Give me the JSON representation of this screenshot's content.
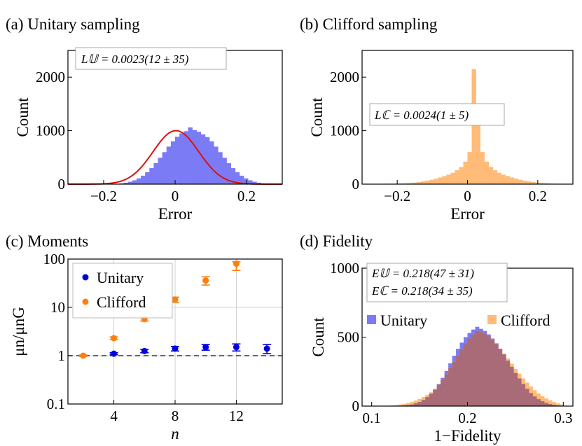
{
  "colors": {
    "unitary": "#0000dd",
    "unitary_hist": "#7b7bf5",
    "clifford": "#ff7f0e",
    "clifford_hist": "#ffbb77",
    "fit_curve": "#dd1111",
    "overlap": "#a86b77"
  },
  "chart_data": [
    {
      "id": "a",
      "type": "histogram",
      "title": "(a) Unitary sampling",
      "xlabel": "Error",
      "ylabel": "Count",
      "xlim": [
        -0.3,
        0.3
      ],
      "ylim": [
        0,
        2500
      ],
      "xticks": [
        {
          "v": -0.2,
          "label": "−0.2"
        },
        {
          "v": 0,
          "label": "0"
        },
        {
          "v": 0.2,
          "label": "0.2"
        }
      ],
      "yticks": [
        {
          "v": 0,
          "label": "0"
        },
        {
          "v": 1000,
          "label": "1000"
        },
        {
          "v": 2000,
          "label": "2000"
        }
      ],
      "annotation": "L𝕌 = 0.0023(12 ± 35)",
      "bin_width": 0.012,
      "bin_start": -0.18,
      "counts": [
        4,
        8,
        15,
        27,
        45,
        72,
        108,
        158,
        222,
        300,
        392,
        492,
        598,
        702,
        800,
        885,
        950,
        990,
        1060,
        1010,
        980,
        930,
        880,
        800,
        702,
        598,
        492,
        392,
        300,
        222,
        158,
        108,
        72,
        45,
        27,
        15,
        8
      ],
      "fit": {
        "type": "gaussian",
        "amplitude": 1000,
        "mean": 0.0023,
        "sigma": 0.064
      }
    },
    {
      "id": "b",
      "type": "histogram",
      "title": "(b) Clifford sampling",
      "xlabel": "Error",
      "ylabel": "Count",
      "xlim": [
        -0.3,
        0.3
      ],
      "ylim": [
        0,
        2500
      ],
      "xticks": [
        {
          "v": -0.2,
          "label": "−0.2"
        },
        {
          "v": 0,
          "label": "0"
        },
        {
          "v": 0.2,
          "label": "0.2"
        }
      ],
      "yticks": [
        {
          "v": 0,
          "label": "0"
        },
        {
          "v": 1000,
          "label": "1000"
        },
        {
          "v": 2000,
          "label": "2000"
        }
      ],
      "annotation": "Lℂ = 0.0024(1 ± 5)",
      "bin_width": 0.012,
      "bin_start": -0.276,
      "counts": [
        2,
        3,
        4,
        5,
        6,
        8,
        10,
        13,
        17,
        22,
        30,
        40,
        52,
        66,
        82,
        102,
        125,
        150,
        178,
        212,
        260,
        320,
        420,
        600,
        2150,
        1400,
        600,
        420,
        320,
        260,
        212,
        178,
        150,
        125,
        102,
        82,
        66,
        52,
        40,
        30,
        22,
        17,
        13,
        10,
        8,
        6
      ]
    },
    {
      "id": "c",
      "type": "scatter",
      "title": "(c) Moments",
      "xlabel": "n",
      "ylabel": "μn/μnG",
      "yscale": "log",
      "xlim": [
        1,
        15
      ],
      "ylim": [
        0.1,
        100
      ],
      "grid": true,
      "legend": "top-left",
      "xticks": [
        {
          "v": 4,
          "label": "4"
        },
        {
          "v": 8,
          "label": "8"
        },
        {
          "v": 12,
          "label": "12"
        }
      ],
      "yticks": [
        {
          "v": 0.1,
          "label": "0.1"
        },
        {
          "v": 1,
          "label": "1"
        },
        {
          "v": 10,
          "label": "10"
        },
        {
          "v": 100,
          "label": "100"
        }
      ],
      "reference_line": 1,
      "series": [
        {
          "name": "Unitary",
          "x": [
            4,
            6,
            8,
            10,
            12,
            14
          ],
          "y": [
            1.1,
            1.25,
            1.4,
            1.5,
            1.5,
            1.4
          ],
          "err_low": [
            0.05,
            0.1,
            0.15,
            0.2,
            0.25,
            0.3
          ],
          "err_high": [
            0.05,
            0.1,
            0.15,
            0.2,
            0.25,
            0.3
          ]
        },
        {
          "name": "Clifford",
          "x": [
            2,
            4,
            6,
            8,
            10,
            12
          ],
          "y": [
            1.0,
            2.3,
            5.7,
            14.5,
            36,
            80
          ],
          "err_low": [
            0.03,
            0.15,
            0.5,
            1.8,
            7,
            22
          ],
          "err_high": [
            0.03,
            0.15,
            0.5,
            1.8,
            7,
            8
          ]
        }
      ]
    },
    {
      "id": "d",
      "type": "histogram",
      "title": "(d) Fidelity",
      "xlabel": "1−Fidelity",
      "ylabel": "Count",
      "xlim": [
        0.09,
        0.31
      ],
      "ylim": [
        0,
        1000
      ],
      "legend": "top",
      "xticks": [
        {
          "v": 0.1,
          "label": "0.1"
        },
        {
          "v": 0.2,
          "label": "0.2"
        },
        {
          "v": 0.3,
          "label": "0.3"
        }
      ],
      "yticks": [
        {
          "v": 0,
          "label": "0"
        },
        {
          "v": 500,
          "label": "500"
        },
        {
          "v": 1000,
          "label": "1000"
        }
      ],
      "annotations": [
        "E𝕌 = 0.218(47 ± 31)",
        "Eℂ = 0.218(34 ± 35)"
      ],
      "bin_width": 0.004,
      "bin_start": 0.12,
      "series": [
        {
          "name": "Unitary",
          "counts": [
            1,
            2,
            3,
            5,
            8,
            12,
            20,
            30,
            45,
            65,
            90,
            120,
            160,
            205,
            255,
            310,
            365,
            415,
            460,
            500,
            530,
            555,
            575,
            560,
            545,
            520,
            490,
            455,
            415,
            375,
            330,
            285,
            240,
            200,
            160,
            125,
            95,
            70,
            50,
            35,
            23,
            15,
            9,
            5,
            3
          ]
        },
        {
          "name": "Clifford",
          "counts": [
            5,
            8,
            12,
            16,
            22,
            30,
            40,
            52,
            66,
            82,
            100,
            125,
            155,
            190,
            230,
            275,
            320,
            365,
            410,
            450,
            490,
            520,
            545,
            540,
            525,
            505,
            480,
            450,
            415,
            380,
            345,
            308,
            270,
            235,
            200,
            170,
            142,
            115,
            92,
            72,
            56,
            42,
            30,
            20,
            12
          ]
        }
      ]
    }
  ]
}
